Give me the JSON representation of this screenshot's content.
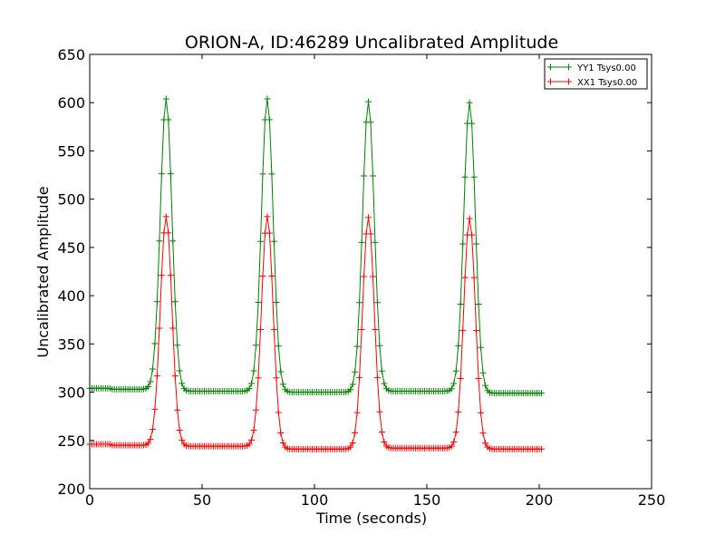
{
  "chart_data": {
    "type": "line",
    "title": "ORION-A, ID:46289 Uncalibrated Amplitude",
    "xlabel": "Time (seconds)",
    "ylabel": "Uncalibrated Amplitude",
    "xlim": [
      0,
      250
    ],
    "ylim": [
      200,
      650
    ],
    "xticks": [
      0,
      50,
      100,
      150,
      200,
      250
    ],
    "yticks": [
      200,
      250,
      300,
      350,
      400,
      450,
      500,
      550,
      600,
      650
    ],
    "grid": false,
    "legend_position": "top-right",
    "marker": "plus",
    "sample_step": 1,
    "series": [
      {
        "name": "YY1 Tsys0.00",
        "color": "#008000",
        "x_range": [
          0,
          201
        ],
        "baseline_segments": [
          {
            "from": 0,
            "to": 10,
            "value": 304
          },
          {
            "from": 10,
            "to": 30,
            "value": 303
          },
          {
            "from": 30,
            "to": 75,
            "value": 301
          },
          {
            "from": 75,
            "to": 120,
            "value": 300
          },
          {
            "from": 120,
            "to": 165,
            "value": 301
          },
          {
            "from": 165,
            "to": 201,
            "value": 299
          }
        ],
        "peaks": [
          {
            "center": 34,
            "height": 604,
            "width": 2.6
          },
          {
            "center": 79,
            "height": 604,
            "width": 2.6
          },
          {
            "center": 124,
            "height": 601,
            "width": 2.6
          },
          {
            "center": 169,
            "height": 600,
            "width": 2.6
          }
        ]
      },
      {
        "name": "XX1 Tsys0.00",
        "color": "#ff0000",
        "x_range": [
          0,
          201
        ],
        "baseline_segments": [
          {
            "from": 0,
            "to": 10,
            "value": 246
          },
          {
            "from": 10,
            "to": 30,
            "value": 245
          },
          {
            "from": 30,
            "to": 75,
            "value": 244
          },
          {
            "from": 75,
            "to": 120,
            "value": 241
          },
          {
            "from": 120,
            "to": 165,
            "value": 242
          },
          {
            "from": 165,
            "to": 201,
            "value": 241
          }
        ],
        "peaks": [
          {
            "center": 34,
            "height": 482,
            "width": 2.6
          },
          {
            "center": 79,
            "height": 482,
            "width": 2.6
          },
          {
            "center": 124,
            "height": 481,
            "width": 2.6
          },
          {
            "center": 169,
            "height": 480,
            "width": 2.6
          }
        ]
      }
    ]
  }
}
